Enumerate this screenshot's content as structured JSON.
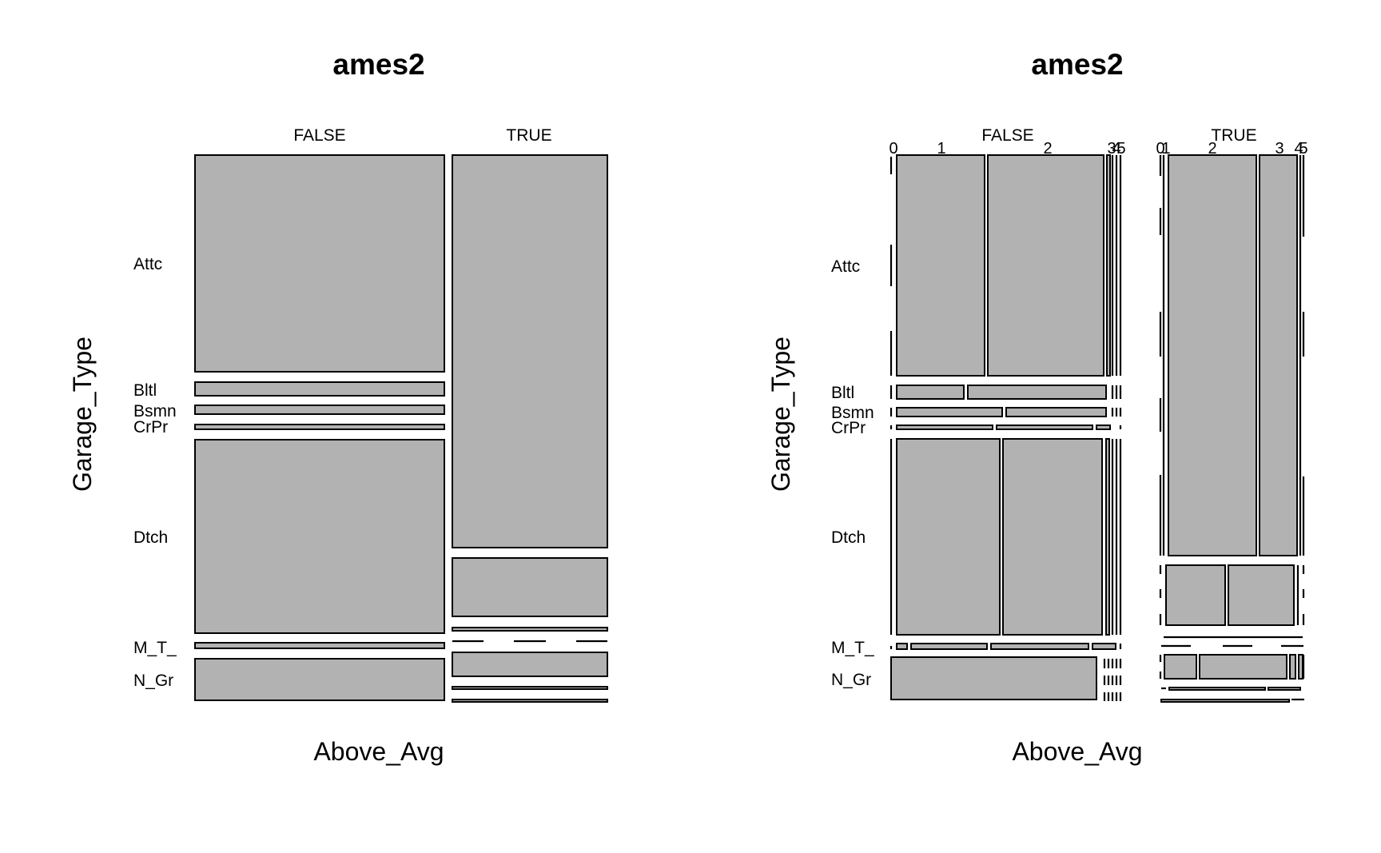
{
  "chart_data": [
    {
      "type": "mosaic",
      "title": "ames2",
      "xlabel": "Above_Avg",
      "ylabel": "Garage_Type",
      "x_levels": [
        "FALSE",
        "TRUE"
      ],
      "y_levels": [
        "Attc",
        "Bltl",
        "Bsmn",
        "CrPr",
        "Dtch",
        "M_T_",
        "N_Gr"
      ],
      "x_prop": [
        0.6,
        0.4
      ],
      "cells": {
        "FALSE": [
          0.446,
          0.028,
          0.018,
          0.01,
          0.4,
          0.012,
          0.086
        ],
        "TRUE": [
          0.8,
          0.12,
          0.007,
          0.0,
          0.05,
          0.004,
          0.004
        ]
      }
    },
    {
      "type": "mosaic",
      "title": "ames2",
      "xlabel": "Above_Avg",
      "ylabel": "Garage_Type",
      "x_levels": [
        "FALSE",
        "TRUE"
      ],
      "inner_levels": [
        "0",
        "1",
        "2",
        "3",
        "4",
        "5"
      ],
      "y_levels": [
        "Attc",
        "Bltl",
        "Bsmn",
        "CrPr",
        "Dtch",
        "M_T_",
        "N_Gr"
      ],
      "x_prop": [
        0.6,
        0.4
      ],
      "inner_prop": {
        "FALSE": [
          0.0,
          0.38,
          0.54,
          0.06,
          0.01,
          0.01
        ],
        "TRUE": [
          0.0,
          0.07,
          0.61,
          0.28,
          0.03,
          0.01
        ]
      },
      "cells": {
        "FALSE": {
          "0": [
            0.0,
            0.0,
            0.0,
            0.0,
            0.0,
            0.0,
            1.0
          ],
          "1": [
            0.446,
            0.028,
            0.018,
            0.01,
            0.4,
            0.012,
            0.086
          ],
          "2": [
            0.446,
            0.028,
            0.018,
            0.01,
            0.4,
            0.012,
            0.086
          ],
          "3": [
            0.446,
            0.028,
            0.018,
            0.01,
            0.4,
            0.012,
            0.086
          ],
          "4": [
            0.0,
            0.0,
            0.0,
            0.0,
            0.0,
            0.0,
            0.0
          ],
          "5": [
            0.0,
            0.0,
            0.0,
            0.0,
            0.0,
            0.0,
            0.0
          ]
        },
        "TRUE": {
          "0": [
            0.0,
            0.0,
            0.0,
            0.0,
            0.0,
            0.0,
            0.0
          ],
          "1": [
            0.8,
            0.12,
            0.007,
            0.0,
            0.05,
            0.004,
            0.004
          ],
          "2": [
            0.8,
            0.12,
            0.007,
            0.0,
            0.05,
            0.004,
            0.004
          ],
          "3": [
            0.8,
            0.12,
            0.007,
            0.0,
            0.05,
            0.004,
            0.004
          ],
          "4": [
            0.0,
            0.0,
            0.0,
            0.0,
            0.0,
            0.0,
            0.0
          ],
          "5": [
            0.0,
            0.0,
            0.0,
            0.0,
            0.0,
            0.0,
            0.0
          ]
        }
      }
    }
  ]
}
